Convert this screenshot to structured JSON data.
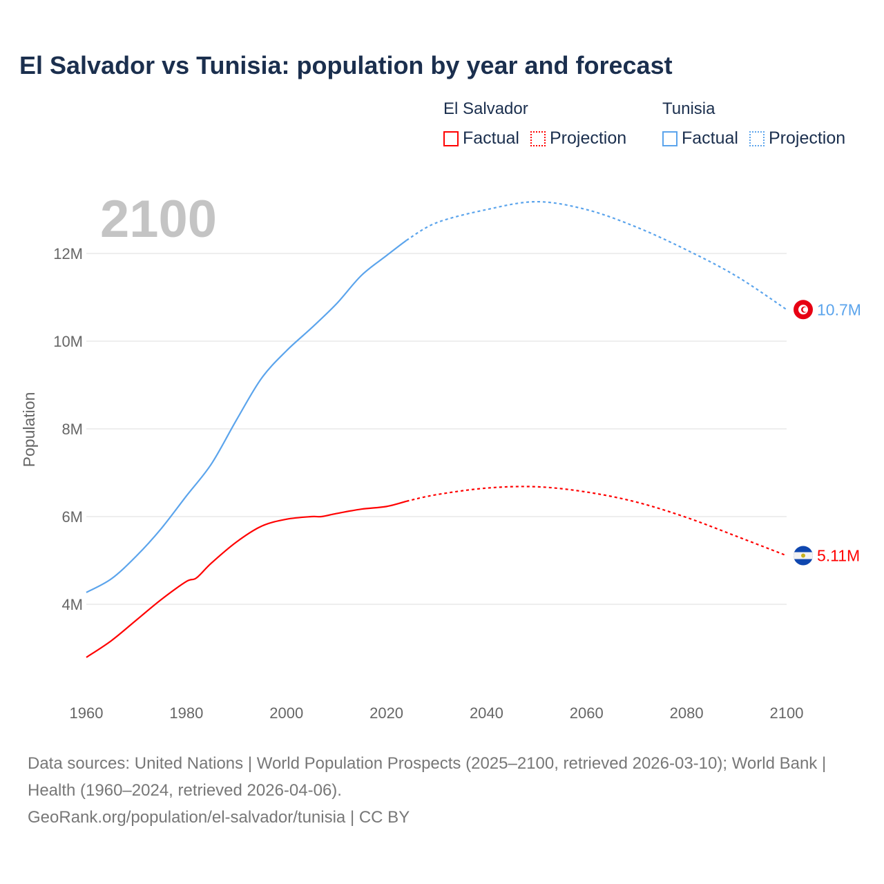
{
  "chart_data": {
    "type": "line",
    "title": "El Salvador vs Tunisia: population by year and forecast",
    "ylabel": "Population",
    "xlabel": "",
    "year_watermark": "2100",
    "xlim": [
      1960,
      2100
    ],
    "ylim": [
      2.2,
      13.8
    ],
    "x_ticks": [
      1960,
      1980,
      2000,
      2020,
      2040,
      2060,
      2080,
      2100
    ],
    "x_tick_labels": [
      "1960",
      "1980",
      "2000",
      "2020",
      "2040",
      "2060",
      "2080",
      "2100"
    ],
    "y_ticks": [
      4,
      6,
      8,
      10,
      12
    ],
    "y_tick_labels": [
      "4M",
      "6M",
      "8M",
      "10M",
      "12M"
    ],
    "grid": true,
    "legend_placement": "top-right",
    "legend": {
      "groups": [
        {
          "name": "El Salvador",
          "factual": "Factual",
          "projection": "Projection"
        },
        {
          "name": "Tunisia",
          "factual": "Factual",
          "projection": "Projection"
        }
      ]
    },
    "series": [
      {
        "name": "El Salvador",
        "color": "#ff0000",
        "end_label": "5.11M",
        "flag": "el-salvador-flag",
        "factual": {
          "x": [
            1960,
            1965,
            1970,
            1975,
            1980,
            1982,
            1985,
            1990,
            1995,
            2000,
            2005,
            2007,
            2010,
            2015,
            2020,
            2024
          ],
          "y": [
            2.79,
            3.17,
            3.64,
            4.11,
            4.52,
            4.6,
            4.94,
            5.42,
            5.78,
            5.94,
            6.0,
            6.0,
            6.07,
            6.17,
            6.23,
            6.35
          ]
        },
        "projection": {
          "x": [
            2024,
            2030,
            2040,
            2050,
            2060,
            2070,
            2080,
            2090,
            2100
          ],
          "y": [
            6.35,
            6.5,
            6.65,
            6.68,
            6.56,
            6.33,
            5.98,
            5.55,
            5.11
          ]
        }
      },
      {
        "name": "Tunisia",
        "color": "#5ba4ec",
        "end_label": "10.7M",
        "flag": "tunisia-flag",
        "factual": {
          "x": [
            1960,
            1965,
            1970,
            1975,
            1980,
            1985,
            1990,
            1995,
            2000,
            2005,
            2010,
            2015,
            2020,
            2024
          ],
          "y": [
            4.27,
            4.58,
            5.1,
            5.73,
            6.47,
            7.2,
            8.2,
            9.15,
            9.78,
            10.3,
            10.85,
            11.5,
            11.95,
            12.3
          ]
        },
        "projection": {
          "x": [
            2024,
            2030,
            2040,
            2050,
            2060,
            2070,
            2080,
            2090,
            2100
          ],
          "y": [
            12.3,
            12.7,
            13.0,
            13.18,
            13.0,
            12.6,
            12.08,
            11.48,
            10.72
          ]
        }
      }
    ]
  },
  "footer": {
    "line1": "Data sources: United Nations | World Population Prospects (2025–2100, retrieved 2026-03-10); World Bank | Health (1960–2024, retrieved 2026-04-06).",
    "line2": "GeoRank.org/population/el-salvador/tunisia | CC BY"
  }
}
